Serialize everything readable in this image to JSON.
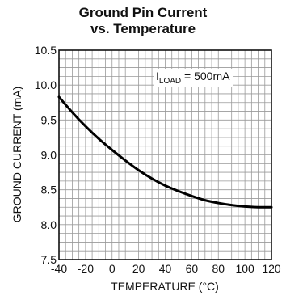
{
  "chart_data": {
    "type": "line",
    "title_lines": [
      "Ground Pin Current",
      "vs. Temperature"
    ],
    "xlabel": "TEMPERATURE (°C)",
    "ylabel": "GROUND CURRENT (mA)",
    "xlim": [
      -40,
      120
    ],
    "ylim": [
      7.5,
      10.5
    ],
    "xticks": [
      -40,
      -20,
      0,
      20,
      40,
      60,
      80,
      100,
      120
    ],
    "xtick_labels": [
      "-40",
      "-20",
      "0",
      "20",
      "40",
      "60",
      "80",
      "100",
      "120"
    ],
    "yticks": [
      7.5,
      8.0,
      8.5,
      9.0,
      9.5,
      10.0,
      10.5
    ],
    "ytick_labels": [
      "7.5",
      "8.0",
      "8.5",
      "9.0",
      "9.5",
      "10.0",
      "10.5"
    ],
    "grid": true,
    "annotation": {
      "main": "I",
      "sub": "LOAD",
      "rest": " = 500mA"
    },
    "series": [
      {
        "x": [
          -40,
          -30,
          -20,
          -10,
          0,
          10,
          20,
          30,
          40,
          50,
          60,
          70,
          80,
          90,
          100,
          110,
          120
        ],
        "values": [
          9.83,
          9.61,
          9.41,
          9.23,
          9.07,
          8.92,
          8.78,
          8.66,
          8.56,
          8.48,
          8.41,
          8.35,
          8.31,
          8.28,
          8.26,
          8.25,
          8.25
        ],
        "color": "#000000"
      }
    ]
  }
}
